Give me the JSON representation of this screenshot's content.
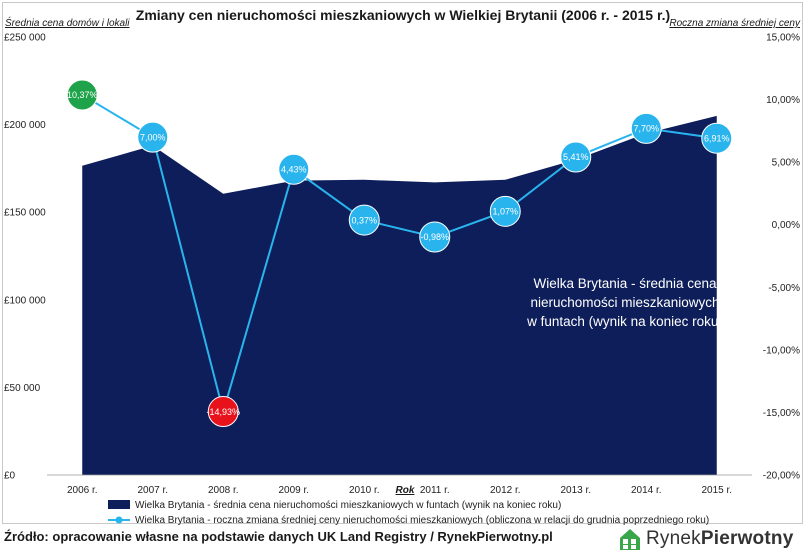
{
  "chart_data": {
    "type": "area+line",
    "title": "Zmiany cen nieruchomości mieszkaniowych w Wielkiej Brytanii (2006 r. - 2015 r.)",
    "ylabel_left": "Średnia cena domów i lokali",
    "ylabel_right": "Roczna zmiana średniej ceny",
    "xlabel": "Rok",
    "categories": [
      "2006 r.",
      "2007 r.",
      "2008 r.",
      "2009 r.",
      "2010 r.",
      "2011 r.",
      "2012 r.",
      "2013 r.",
      "2014 r.",
      "2015 r."
    ],
    "y_left_ticks": [
      "£0",
      "£50 000",
      "£100 000",
      "£150 000",
      "£200 000",
      "£250 000"
    ],
    "y_left_range": [
      0,
      250000
    ],
    "y_right_ticks": [
      "-20,00%",
      "-15,00%",
      "-10,00%",
      "-5,00%",
      "0,00%",
      "5,00%",
      "10,00%",
      "15,00%"
    ],
    "y_right_range": [
      -20,
      15
    ],
    "series": [
      {
        "name": "Wielka Brytania - średnia cena nieruchomości mieszkaniowych w funtach (wynik na koniec roku)",
        "type": "area",
        "axis": "left",
        "color": "#0d1e5a",
        "values": [
          176500,
          188000,
          160500,
          168000,
          168500,
          167000,
          168500,
          180000,
          195000,
          205000
        ]
      },
      {
        "name": "Wielka Brytania - roczna zmiana średniej ceny nieruchomości mieszkaniowych (obliczona w relacji do grudnia poprzedniego roku)",
        "type": "line",
        "axis": "right",
        "color": "#2ab4ee",
        "values": [
          10.37,
          7.0,
          -14.93,
          4.43,
          0.37,
          -0.98,
          1.07,
          5.41,
          7.7,
          6.91
        ],
        "labels": [
          "10,37%",
          "7,00%",
          "-14,93%",
          "4,43%",
          "0,37%",
          "-0,98%",
          "1,07%",
          "5,41%",
          "7,70%",
          "6,91%"
        ]
      }
    ],
    "highlight_colors": {
      "max": "#1fa34a",
      "min": "#e8121d"
    },
    "annotation": [
      "Wielka Brytania - średnia cena",
      "nieruchomości mieszkaniowych",
      "w funtach (wynik na koniec roku)"
    ]
  },
  "source": "Źródło: opracowanie własne na podstawie danych UK Land Registry / RynekPierwotny.pl",
  "logo": {
    "part1": "Rynek",
    "part2": "Pierwotny"
  },
  "colors": {
    "marker_stroke": "#ffffff",
    "logo_icon": "#3aa64a"
  }
}
